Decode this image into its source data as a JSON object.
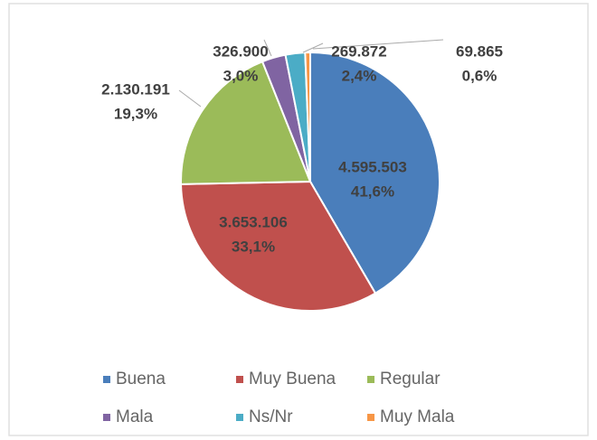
{
  "chart_data": {
    "type": "pie",
    "categories": [
      "Buena",
      "Muy Buena",
      "Regular",
      "Mala",
      "Ns/Nr",
      "Muy Mala"
    ],
    "values": [
      4595503,
      3653106,
      2130191,
      326900,
      269872,
      69865
    ],
    "value_labels": [
      "4.595.503",
      "3.653.106",
      "2.130.191",
      "326.900",
      "269.872",
      "69.865"
    ],
    "percent_labels": [
      "41,6%",
      "33,1%",
      "19,3%",
      "3,0%",
      "2,4%",
      "0,6%"
    ],
    "colors": [
      "#4a7ebb",
      "#c0504d",
      "#9bbb59",
      "#8064a2",
      "#4bacc6",
      "#f79646"
    ],
    "legend": "bottom"
  }
}
